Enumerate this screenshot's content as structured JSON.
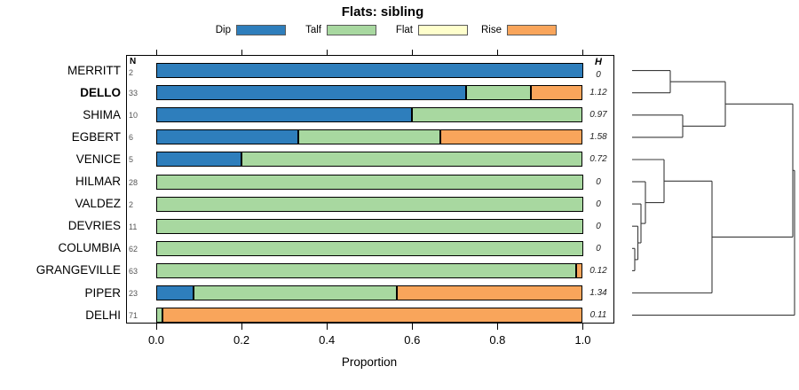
{
  "title": "Flats: sibling",
  "legend": {
    "items": [
      {
        "label": "Dip",
        "key": "dip",
        "color": "#2E7EBC"
      },
      {
        "label": "Talf",
        "key": "talf",
        "color": "#A8D8A0"
      },
      {
        "label": "Flat",
        "key": "flat",
        "color": "#FFFFCC"
      },
      {
        "label": "Rise",
        "key": "rise",
        "color": "#F9A55B"
      }
    ]
  },
  "columns": {
    "n_header": "N",
    "h_header": "H"
  },
  "axis": {
    "x_label": "Proportion",
    "x_ticks": [
      "0.0",
      "0.2",
      "0.4",
      "0.6",
      "0.8",
      "1.0"
    ]
  },
  "chart_data": {
    "type": "bar",
    "stacked": true,
    "orientation": "horizontal",
    "title": "Flats: sibling",
    "xlabel": "Proportion",
    "xlim": [
      0,
      1
    ],
    "grid": false,
    "legend_position": "top",
    "segment_order": [
      "dip",
      "talf",
      "flat",
      "rise"
    ],
    "rows": [
      {
        "label": "MERRITT",
        "n": 2,
        "h": "0",
        "bold": false,
        "dip": 1.0,
        "talf": 0.0,
        "flat": 0,
        "rise": 0.0
      },
      {
        "label": "DELLO",
        "n": 33,
        "h": "1.12",
        "bold": true,
        "dip": 0.727,
        "talf": 0.152,
        "flat": 0,
        "rise": 0.121
      },
      {
        "label": "SHIMA",
        "n": 10,
        "h": "0.97",
        "bold": false,
        "dip": 0.6,
        "talf": 0.4,
        "flat": 0,
        "rise": 0.0
      },
      {
        "label": "EGBERT",
        "n": 6,
        "h": "1.58",
        "bold": false,
        "dip": 0.333,
        "talf": 0.334,
        "flat": 0,
        "rise": 0.333
      },
      {
        "label": "VENICE",
        "n": 5,
        "h": "0.72",
        "bold": false,
        "dip": 0.2,
        "talf": 0.8,
        "flat": 0,
        "rise": 0.0
      },
      {
        "label": "HILMAR",
        "n": 28,
        "h": "0",
        "bold": false,
        "dip": 0.0,
        "talf": 1.0,
        "flat": 0,
        "rise": 0.0
      },
      {
        "label": "VALDEZ",
        "n": 2,
        "h": "0",
        "bold": false,
        "dip": 0.0,
        "talf": 1.0,
        "flat": 0,
        "rise": 0.0
      },
      {
        "label": "DEVRIES",
        "n": 11,
        "h": "0",
        "bold": false,
        "dip": 0.0,
        "talf": 1.0,
        "flat": 0,
        "rise": 0.0
      },
      {
        "label": "COLUMBIA",
        "n": 62,
        "h": "0",
        "bold": false,
        "dip": 0.0,
        "talf": 1.0,
        "flat": 0,
        "rise": 0.0
      },
      {
        "label": "GRANGEVILLE",
        "n": 63,
        "h": "0.12",
        "bold": false,
        "dip": 0.0,
        "talf": 0.984,
        "flat": 0,
        "rise": 0.016
      },
      {
        "label": "PIPER",
        "n": 23,
        "h": "1.34",
        "bold": false,
        "dip": 0.087,
        "talf": 0.478,
        "flat": 0,
        "rise": 0.435
      },
      {
        "label": "DELHI",
        "n": 71,
        "h": "0.11",
        "bold": false,
        "dip": 0.0,
        "talf": 0.014,
        "flat": 0,
        "rise": 0.986
      }
    ],
    "dendrogram": {
      "segments": [
        [
          712,
          79.6,
          755,
          79.6
        ],
        [
          712,
          104.7,
          755,
          104.7
        ],
        [
          755,
          79.6,
          755,
          104.7
        ],
        [
          755,
          92.2,
          817,
          92.2
        ],
        [
          712,
          129.8,
          769,
          129.8
        ],
        [
          712,
          154.9,
          769,
          154.9
        ],
        [
          769,
          129.8,
          769,
          154.9
        ],
        [
          769,
          142.3,
          817,
          142.3
        ],
        [
          817,
          92.2,
          817,
          142.3
        ],
        [
          817,
          117.3,
          893,
          117.3
        ],
        [
          712,
          180,
          748,
          180
        ],
        [
          712,
          205,
          727,
          205
        ],
        [
          712,
          230.1,
          722,
          230.1
        ],
        [
          712,
          255.2,
          718.5,
          255.2
        ],
        [
          712,
          280.3,
          715,
          280.3
        ],
        [
          712,
          305.4,
          715,
          305.4
        ],
        [
          715,
          280.3,
          715,
          305.4
        ],
        [
          715,
          292.9,
          718.5,
          292.9
        ],
        [
          718.5,
          255.2,
          718.5,
          292.9
        ],
        [
          718.5,
          274,
          722,
          274
        ],
        [
          722,
          230.1,
          722,
          274
        ],
        [
          722,
          252.1,
          727,
          252.1
        ],
        [
          727,
          205,
          727,
          252.1
        ],
        [
          727,
          228.6,
          748,
          228.6
        ],
        [
          748,
          180,
          748,
          228.6
        ],
        [
          748,
          204.3,
          802,
          204.3
        ],
        [
          712,
          330.5,
          802,
          330.5
        ],
        [
          802,
          204.3,
          802,
          330.5
        ],
        [
          802,
          267.4,
          893,
          267.4
        ],
        [
          893,
          117.3,
          893,
          267.4
        ],
        [
          893,
          192.3,
          895,
          192.3
        ],
        [
          712,
          355.6,
          895,
          355.6
        ],
        [
          895,
          192.3,
          895,
          355.6
        ]
      ]
    }
  }
}
